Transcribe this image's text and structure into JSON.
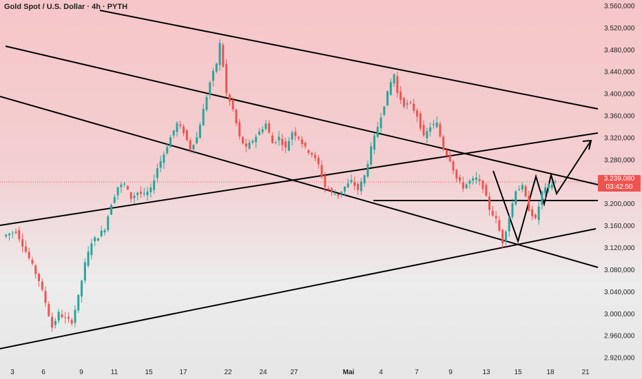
{
  "header": {
    "title": "Gold Spot / U.S. Dollar · 4h · PYTH"
  },
  "price_label": {
    "price": "3.239,080",
    "countdown": "03:42:50"
  },
  "colors": {
    "up": "#26a69a",
    "down": "#ef5350",
    "line": "#000000",
    "price_line": "#ef5350"
  },
  "chart_data": {
    "type": "candlestick",
    "title": "Gold Spot / U.S. Dollar · 4h · PYTH",
    "y_axis": {
      "ylim": [
        2912,
        3570
      ],
      "ticks": [
        3560,
        3520,
        3480,
        3440,
        3400,
        3360,
        3320,
        3280,
        3240,
        3200,
        3160,
        3120,
        3080,
        3040,
        3000,
        2960,
        2920
      ],
      "tick_labels": [
        "3.560,000",
        "3.520,000",
        "3.480,000",
        "3.440,000",
        "3.400,000",
        "3.360,000",
        "3.320,000",
        "3.280,000",
        "3.240,000",
        "3.200,000",
        "3.160,000",
        "3.120,000",
        "3.080,000",
        "3.040,000",
        "3.000,000",
        "2.960,000",
        "2.920,000"
      ]
    },
    "x_axis": {
      "labels": [
        "3",
        "6",
        "9",
        "11",
        "15",
        "17",
        "22",
        "24",
        "27",
        "Mai",
        "4",
        "7",
        "9",
        "13",
        "15",
        "18",
        "21"
      ],
      "bold_labels": [
        "Mai"
      ]
    },
    "current_price": 3239.08,
    "drawn_levels": {
      "horizontal_support": 3201
    },
    "price_path": [
      [
        0,
        3140
      ],
      [
        4,
        3150
      ],
      [
        8,
        3100
      ],
      [
        11,
        3060
      ],
      [
        13,
        3020
      ],
      [
        15,
        2975
      ],
      [
        17,
        3000
      ],
      [
        19,
        2990
      ],
      [
        21,
        2985
      ],
      [
        23,
        3030
      ],
      [
        25,
        3090
      ],
      [
        27,
        3130
      ],
      [
        29,
        3140
      ],
      [
        31,
        3155
      ],
      [
        33,
        3200
      ],
      [
        35,
        3230
      ],
      [
        37,
        3235
      ],
      [
        39,
        3210
      ],
      [
        41,
        3220
      ],
      [
        43,
        3215
      ],
      [
        45,
        3225
      ],
      [
        47,
        3265
      ],
      [
        49,
        3290
      ],
      [
        51,
        3320
      ],
      [
        53,
        3345
      ],
      [
        55,
        3330
      ],
      [
        57,
        3300
      ],
      [
        59,
        3320
      ],
      [
        61,
        3370
      ],
      [
        63,
        3420
      ],
      [
        65,
        3455
      ],
      [
        66,
        3490
      ],
      [
        67,
        3450
      ],
      [
        68,
        3400
      ],
      [
        70,
        3370
      ],
      [
        72,
        3320
      ],
      [
        74,
        3300
      ],
      [
        76,
        3315
      ],
      [
        78,
        3330
      ],
      [
        80,
        3345
      ],
      [
        82,
        3310
      ],
      [
        84,
        3320
      ],
      [
        86,
        3300
      ],
      [
        88,
        3330
      ],
      [
        90,
        3320
      ],
      [
        92,
        3300
      ],
      [
        94,
        3290
      ],
      [
        96,
        3270
      ],
      [
        98,
        3230
      ],
      [
        100,
        3220
      ],
      [
        102,
        3215
      ],
      [
        104,
        3230
      ],
      [
        106,
        3240
      ],
      [
        108,
        3225
      ],
      [
        110,
        3250
      ],
      [
        112,
        3300
      ],
      [
        114,
        3340
      ],
      [
        116,
        3380
      ],
      [
        118,
        3420
      ],
      [
        119,
        3435
      ],
      [
        120,
        3400
      ],
      [
        122,
        3380
      ],
      [
        124,
        3380
      ],
      [
        126,
        3360
      ],
      [
        128,
        3320
      ],
      [
        130,
        3340
      ],
      [
        132,
        3345
      ],
      [
        134,
        3300
      ],
      [
        136,
        3280
      ],
      [
        138,
        3245
      ],
      [
        140,
        3230
      ],
      [
        142,
        3240
      ],
      [
        144,
        3245
      ],
      [
        146,
        3230
      ],
      [
        148,
        3190
      ],
      [
        150,
        3170
      ],
      [
        152,
        3130
      ],
      [
        154,
        3175
      ],
      [
        156,
        3225
      ],
      [
        158,
        3230
      ],
      [
        160,
        3190
      ],
      [
        162,
        3170
      ],
      [
        164,
        3220
      ],
      [
        166,
        3232
      ],
      [
        168,
        3239
      ]
    ]
  }
}
